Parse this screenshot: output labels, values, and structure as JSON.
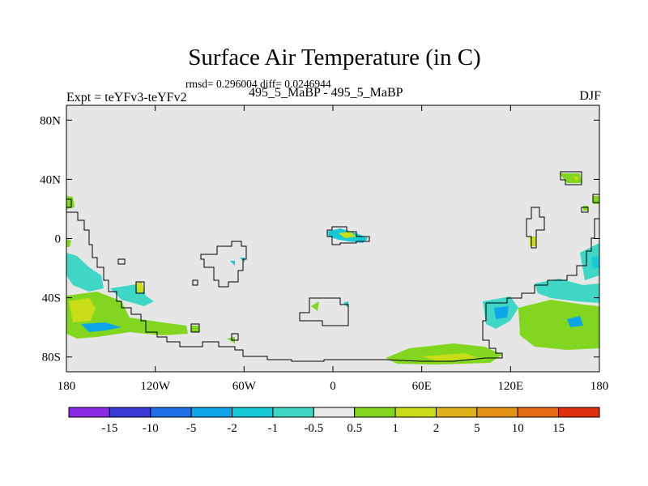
{
  "title": "Surface Air Temperature (in C)",
  "stats": "rmsd= 0.296004 diff= 0.0246944",
  "experiment": "Expt = teYFv3-teYFv2",
  "case": "495_5_MaBP - 495_5_MaBP",
  "season": "DJF",
  "map": {
    "projection": "cylindrical equidistant",
    "lon_range": [
      -180,
      180
    ],
    "lat_range": [
      -90,
      90
    ],
    "background_color": "#e6e6e6",
    "coastline_color": "#000000",
    "x_ticks": [
      {
        "value": -180,
        "label": "180"
      },
      {
        "value": -120,
        "label": "120W"
      },
      {
        "value": -60,
        "label": "60W"
      },
      {
        "value": 0,
        "label": "0"
      },
      {
        "value": 60,
        "label": "60E"
      },
      {
        "value": 120,
        "label": "120E"
      },
      {
        "value": 180,
        "label": "180"
      }
    ],
    "y_ticks": [
      {
        "value": 80,
        "label": "80N"
      },
      {
        "value": 40,
        "label": "40N"
      },
      {
        "value": 0,
        "label": "0"
      },
      {
        "value": -40,
        "label": "40S"
      },
      {
        "value": -80,
        "label": "80S"
      }
    ]
  },
  "colorbar": {
    "colors": [
      "#8a2be2",
      "#3a3ad6",
      "#1f6fe6",
      "#0ea5e9",
      "#15c9d6",
      "#3fd6c6",
      "#e8e8e8",
      "#82d61f",
      "#c8dc18",
      "#e0b21a",
      "#e49214",
      "#e46a14",
      "#e0300f"
    ],
    "labels": [
      "-15",
      "-10",
      "-5",
      "-2",
      "-1",
      "-0.5",
      "0.5",
      "1",
      "2",
      "5",
      "10",
      "15"
    ]
  }
}
